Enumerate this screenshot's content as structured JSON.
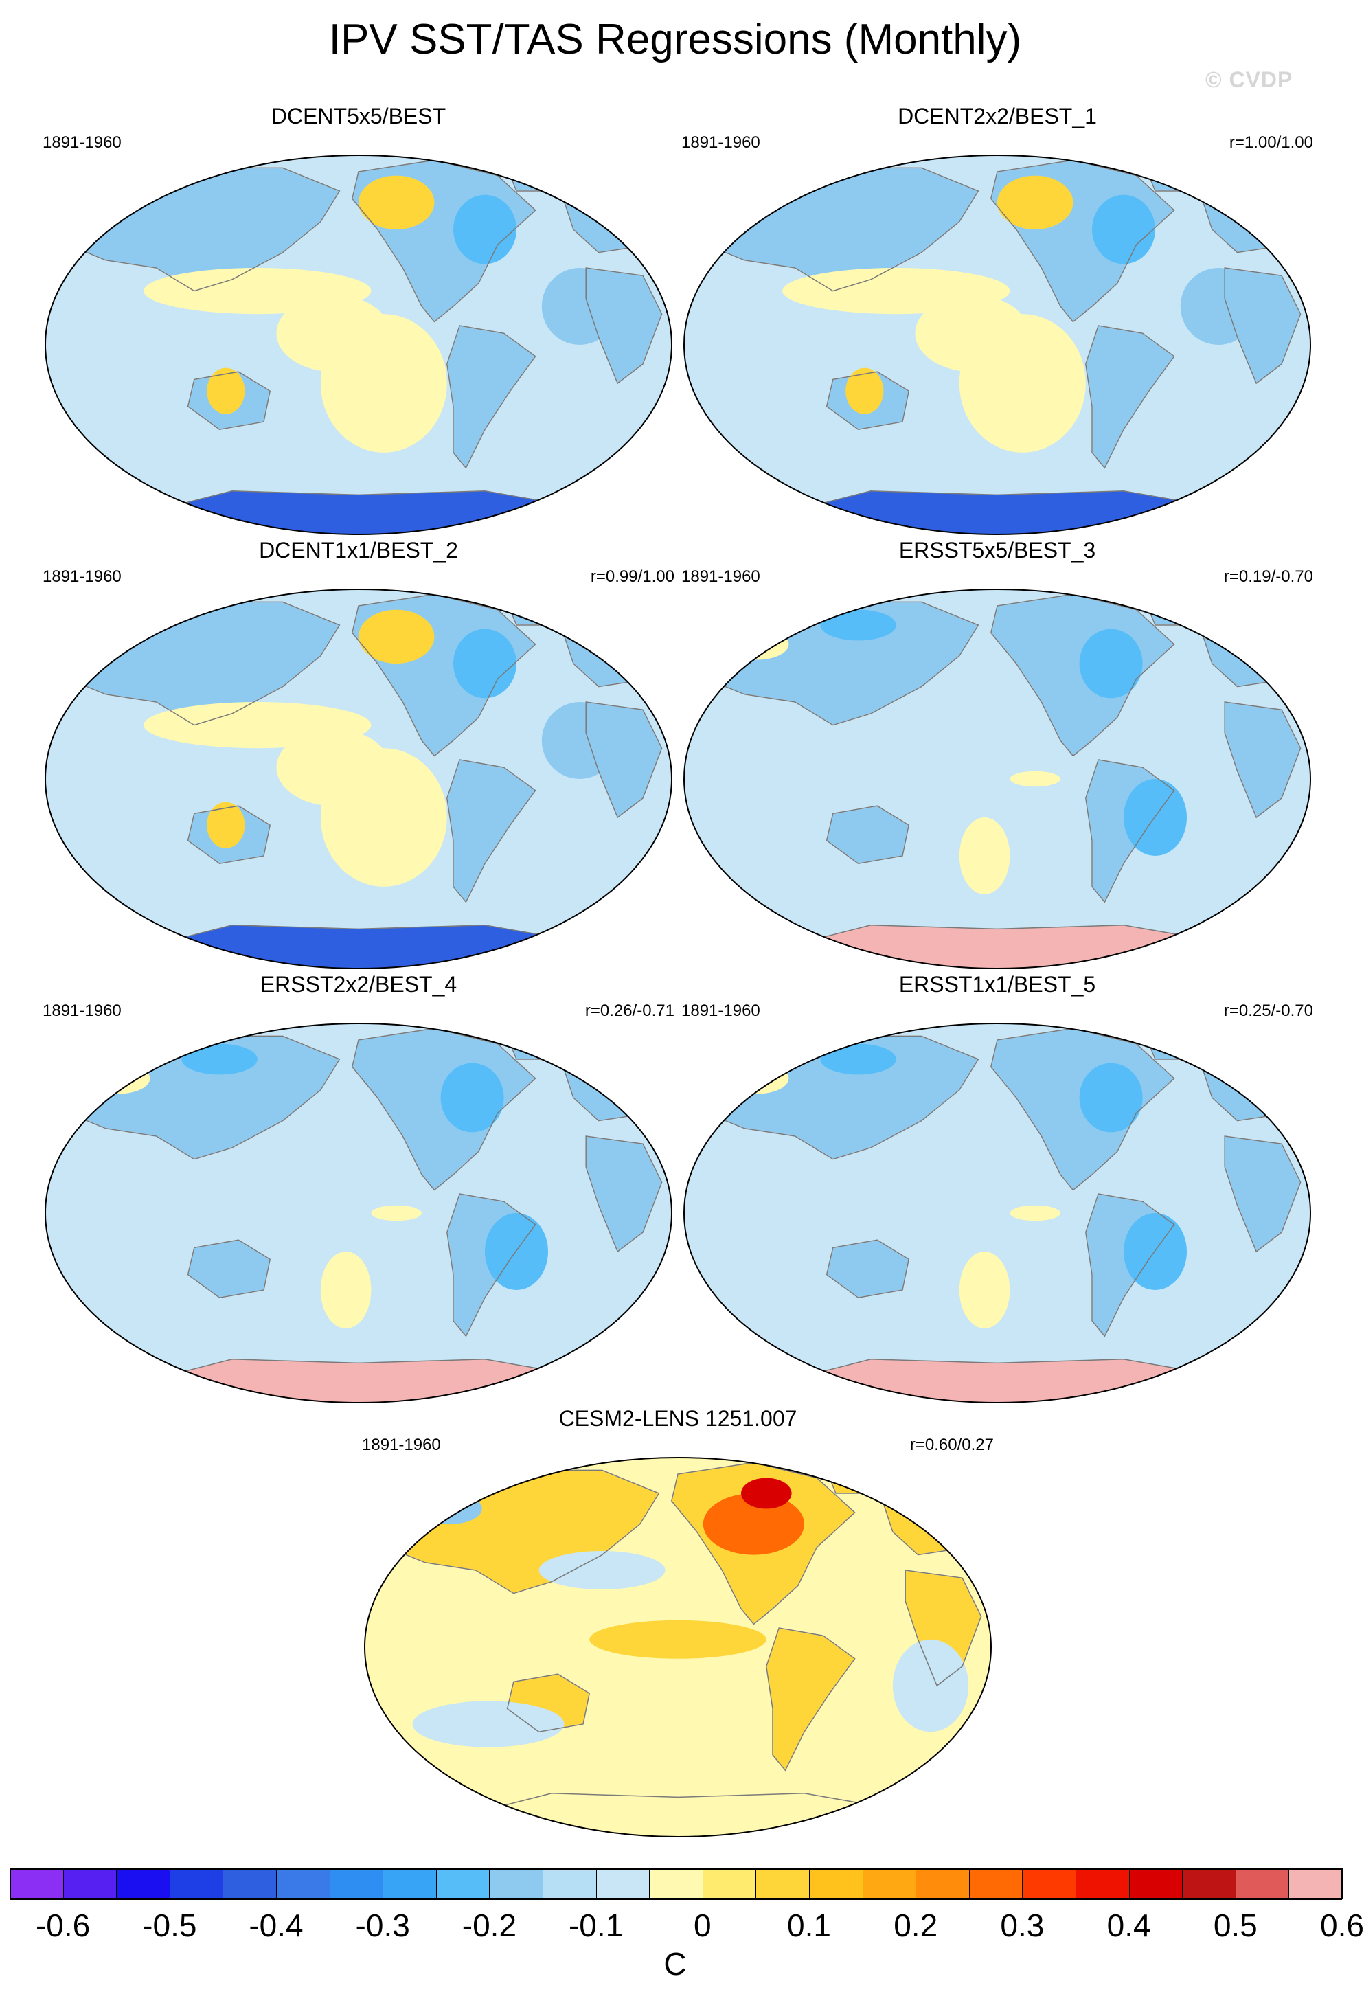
{
  "title": "IPV SST/TAS Regressions (Monthly)",
  "watermark": "© CVDP",
  "panels": [
    {
      "title": "DCENT5x5/BEST",
      "period": "1891-1960",
      "corr": "",
      "scheme": "cool_yellow"
    },
    {
      "title": "DCENT2x2/BEST_1",
      "period": "1891-1960",
      "corr": "r=1.00/1.00",
      "scheme": "cool_yellow"
    },
    {
      "title": "DCENT1x1/BEST_2",
      "period": "1891-1960",
      "corr": "r=0.99/1.00",
      "scheme": "cool_yellow"
    },
    {
      "title": "ERSST5x5/BEST_3",
      "period": "1891-1960",
      "corr": "r=0.19/-0.70",
      "scheme": "cool"
    },
    {
      "title": "ERSST2x2/BEST_4",
      "period": "1891-1960",
      "corr": "r=0.26/-0.71",
      "scheme": "cool"
    },
    {
      "title": "ERSST1x1/BEST_5",
      "period": "1891-1960",
      "corr": "r=0.25/-0.70",
      "scheme": "cool"
    },
    {
      "title": "CESM2-LENS 1251.007",
      "period": "1891-1960",
      "corr": "r=0.60/0.27",
      "scheme": "warm"
    }
  ],
  "colorbar": {
    "units": "C",
    "tick_labels": [
      "-0.6",
      "-0.5",
      "-0.4",
      "-0.3",
      "-0.2",
      "-0.1",
      "0",
      "0.1",
      "0.2",
      "0.3",
      "0.4",
      "0.5",
      "0.6"
    ],
    "colors": [
      "#8c2ff5",
      "#5620f2",
      "#1a0ff0",
      "#1e3fe6",
      "#2d5fe0",
      "#3a7ae8",
      "#2f8ef2",
      "#38a4f5",
      "#56bdf8",
      "#8ecaf0",
      "#b6def4",
      "#c8e6f6",
      "#fff9b2",
      "#ffeb6e",
      "#ffd63a",
      "#ffc21c",
      "#ffa812",
      "#ff8c0a",
      "#ff6a04",
      "#ff3a00",
      "#f01200",
      "#d80000",
      "#bf1414",
      "#e05a5a",
      "#f5b4b4"
    ]
  },
  "palette": {
    "ocean_neutral": "#c8e6f6",
    "ocean_cool": "#8ecaf0",
    "ocean_cooler": "#56bdf8",
    "warm_light": "#fff9b2",
    "warm_mid": "#ffd63a",
    "warm_strong": "#ff6a04",
    "hot": "#d80000",
    "ice_pink": "#f5b4b4",
    "deep_blue": "#2d5fe0"
  }
}
